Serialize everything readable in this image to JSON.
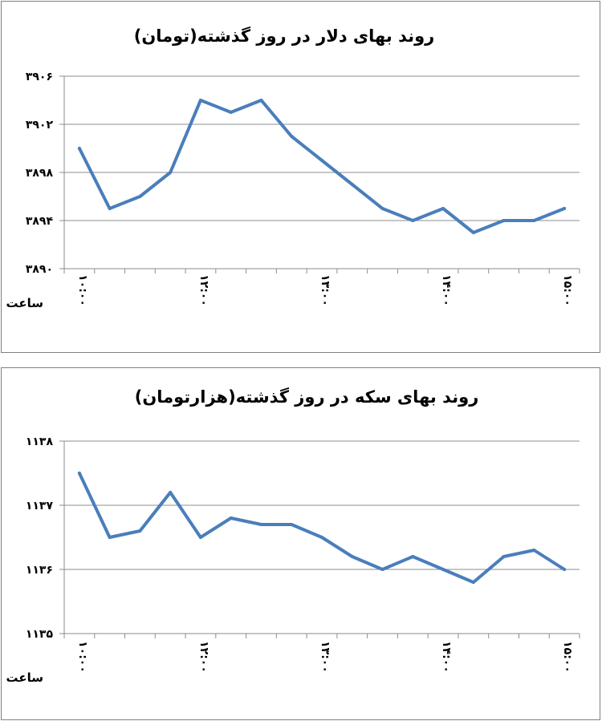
{
  "chart_data": [
    {
      "type": "line",
      "title": "روند بهای دلار در روز گذشته(تومان)",
      "xlabel": "ساعت",
      "ylabel": "",
      "ylim": [
        3890,
        3906
      ],
      "yticks": [
        "۳۸۹۰",
        "۳۸۹۴",
        "۳۸۹۸",
        "۳۹۰۲",
        "۳۹۰۶"
      ],
      "ytick_values": [
        3890,
        3894,
        3898,
        3902,
        3906
      ],
      "xtick_labels": [
        "۱۰:۰۰",
        "۱۲:۰۰",
        "۱۳:۰۰",
        "۱۴:۰۰",
        "۱۵:۰۰"
      ],
      "xtick_index": [
        0,
        4,
        8,
        12,
        16
      ],
      "values": [
        3900,
        3895,
        3896,
        3898,
        3904,
        3903,
        3904,
        3901,
        3899,
        3897,
        3895,
        3894,
        3895,
        3893,
        3894,
        3894,
        3895
      ],
      "grid": true,
      "color": "#4a7ebb"
    },
    {
      "type": "line",
      "title": "روند بهای سکه در روز گذشته(هزارتومان)",
      "xlabel": "ساعت",
      "ylabel": "",
      "ylim": [
        1135,
        1138
      ],
      "yticks": [
        "۱۱۳۵",
        "۱۱۳۶",
        "۱۱۳۷",
        "۱۱۳۸"
      ],
      "ytick_values": [
        1135,
        1136,
        1137,
        1138
      ],
      "xtick_labels": [
        "۱۰:۰۰",
        "۱۲:۰۰",
        "۱۳:۰۰",
        "۱۴:۰۰",
        "۱۵:۰۰"
      ],
      "xtick_index": [
        0,
        4,
        8,
        12,
        16
      ],
      "values": [
        1137.5,
        1136.5,
        1136.6,
        1137.2,
        1136.5,
        1136.8,
        1136.7,
        1136.7,
        1136.5,
        1136.2,
        1136.0,
        1136.2,
        1136.0,
        1135.8,
        1136.2,
        1136.3,
        1136.0
      ],
      "grid": true,
      "color": "#4a7ebb"
    }
  ]
}
